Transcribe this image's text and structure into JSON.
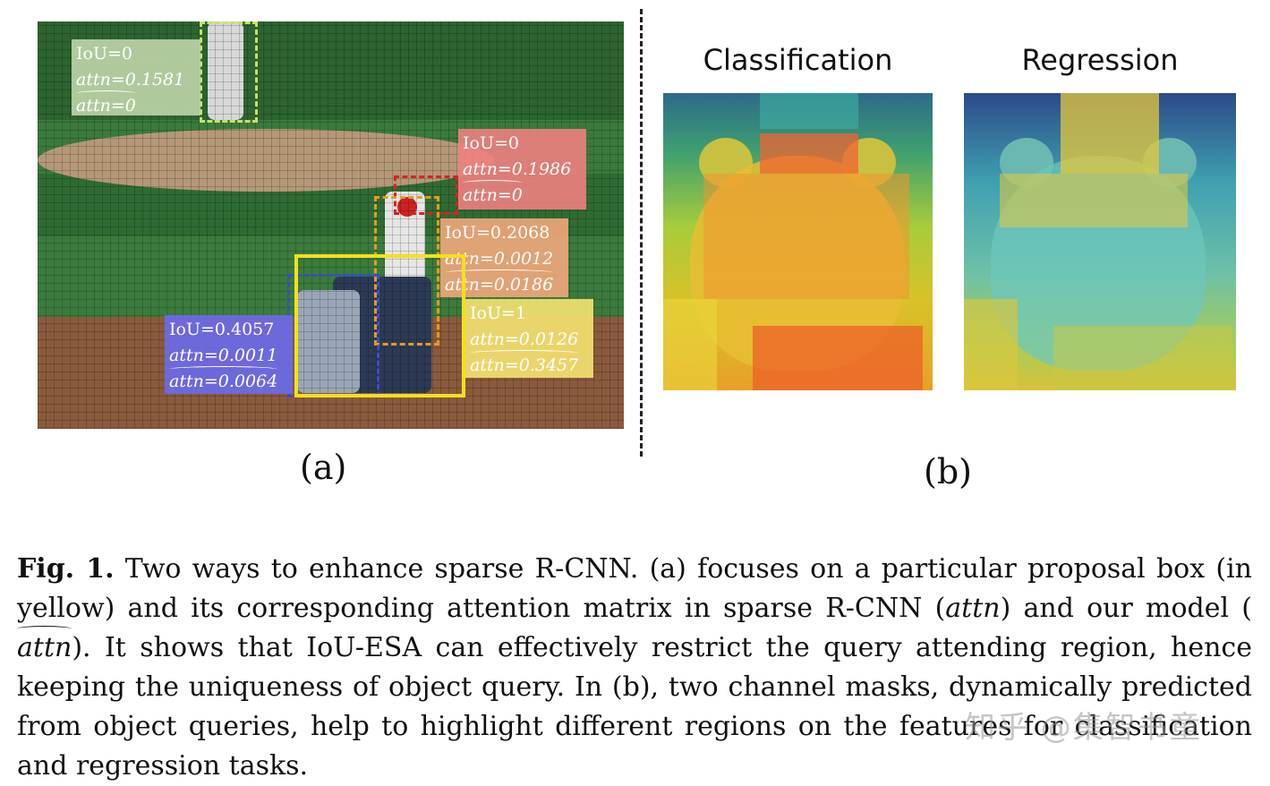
{
  "panel_a": {
    "sublabel": "(a)",
    "boxes": [
      {
        "color": "#c8e06a",
        "style": "dashed",
        "lines": [
          "IoU=0",
          "attn=0.1581",
          "attn=0"
        ],
        "label_bg": "#c8dcb0"
      },
      {
        "color": "#dc2020",
        "style": "dashed",
        "lines": [
          "IoU=0",
          "attn=0.1986",
          "attn=0"
        ],
        "label_bg": "#f08080"
      },
      {
        "color": "#e89a20",
        "style": "dashed",
        "lines": [
          "IoU=0.2068",
          "attn=0.0012",
          "attn=0.0186"
        ],
        "label_bg": "#eea67a"
      },
      {
        "color": "#3a4ccc",
        "style": "dashed",
        "lines": [
          "IoU=0.4057",
          "attn=0.0011",
          "attn=0.0064"
        ],
        "label_bg": "#6a6ae8"
      },
      {
        "color": "#f2e020",
        "style": "solid",
        "lines": [
          "IoU=1",
          "attn=0.0126",
          "attn=0.3457"
        ],
        "label_bg": "#f2e070"
      }
    ]
  },
  "panel_b": {
    "sublabel": "(b)",
    "titles": [
      "Classification",
      "Regression"
    ]
  },
  "caption": {
    "fig_label": "Fig. 1.",
    "text_1": " Two ways to enhance sparse R-CNN. (a) focuses on a particular proposal box (in yellow) and its corresponding attention matrix in sparse R-CNN (",
    "attn": "attn",
    "text_2": ") and our model (",
    "attn_hat": "attn",
    "text_3": "). It shows that IoU-ESA can effectively restrict the query attending region, hence keeping the uniqueness of object query. In (b), two channel masks, dynamically predicted from object queries, help to highlight different regions on the features for classification and regression tasks."
  },
  "watermark": "知乎 @集智书童"
}
